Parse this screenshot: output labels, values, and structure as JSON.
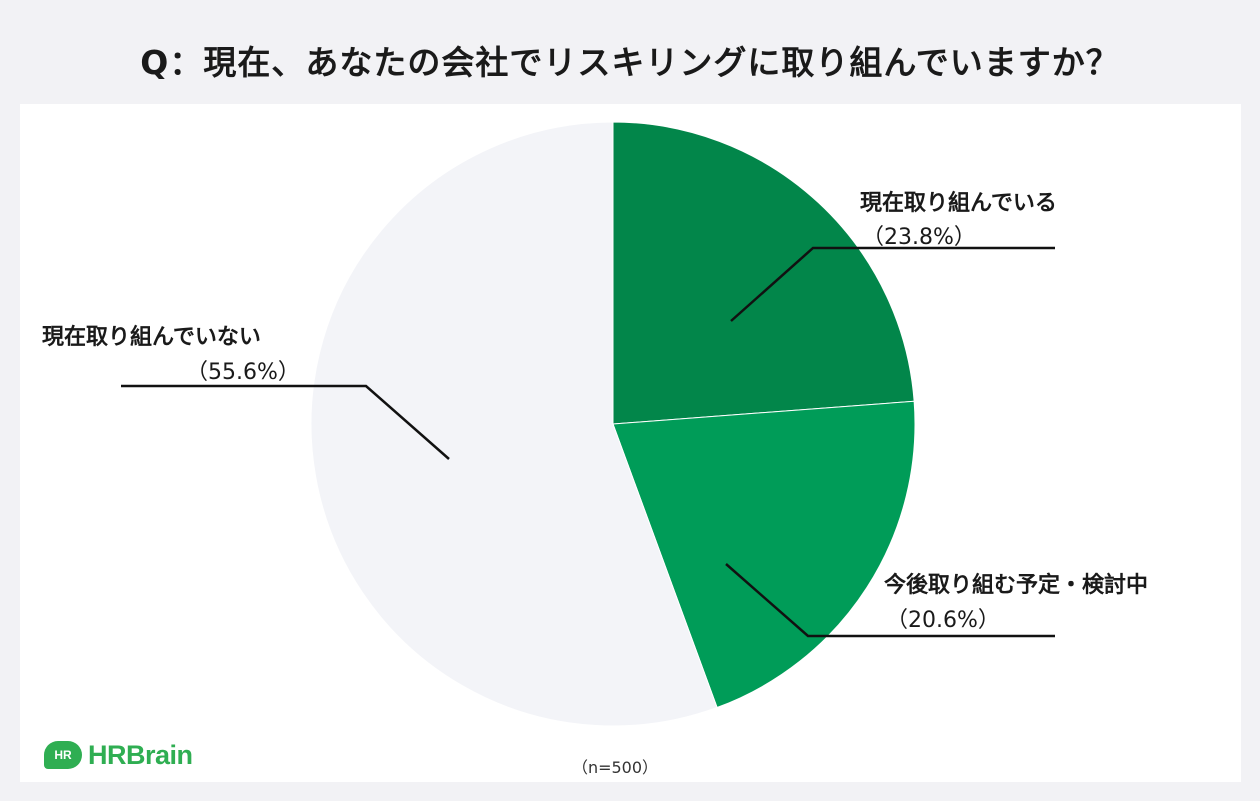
{
  "title": "Q：現在、あなたの会社でリスキリングに取り組んでいますか？",
  "note": "（n=500）",
  "logo": {
    "badge": "HR",
    "text": "HRBrain"
  },
  "colors": {
    "doing": "#02864a",
    "planning": "#009c58",
    "not_doing": "#f3f4f8",
    "leader_line": "#111111"
  },
  "chart_data": {
    "type": "pie",
    "title": "Q：現在、あなたの会社でリスキリングに取り組んでいますか？",
    "slices": [
      {
        "label": "現在取り組んでいる",
        "value": 23.8,
        "display": "（23.8%）"
      },
      {
        "label": "今後取り組む予定・検討中",
        "value": 20.6,
        "display": "（20.6%）"
      },
      {
        "label": "現在取り組んでいない",
        "value": 55.6,
        "display": "（55.6%）"
      }
    ],
    "start": "12 o'clock",
    "direction": "clockwise",
    "legend": "none (labels beside slices with leader lines)"
  }
}
